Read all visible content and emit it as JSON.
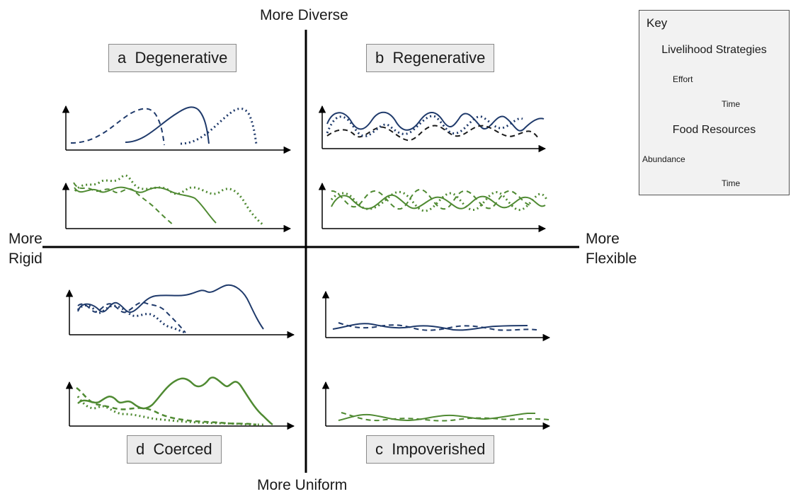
{
  "axes": {
    "top": "More Diverse",
    "bottom": "More Uniform",
    "left_line1": "More",
    "left_line2": "Rigid",
    "right_line1": "More",
    "right_line2": "Flexible"
  },
  "quadrants": {
    "a": {
      "letter": "a",
      "name": "Degenerative"
    },
    "b": {
      "letter": "b",
      "name": "Regenerative"
    },
    "c": {
      "letter": "c",
      "name": "Impoverished"
    },
    "d": {
      "letter": "d",
      "name": "Coerced"
    }
  },
  "key": {
    "title": "Key",
    "livelihood": {
      "heading": "Livelihood Strategies",
      "ylabel": "Effort",
      "xlabel": "Time"
    },
    "food": {
      "heading": "Food Resources",
      "ylabel": "Abundance",
      "xlabel": "Time"
    }
  },
  "colors": {
    "livelihood": "#1f3a6b",
    "food": "#4f8a32",
    "regen_dashed": "#1a1a1a",
    "axis": "#000000"
  },
  "line_styles": [
    "solid",
    "dashed",
    "dotted"
  ]
}
